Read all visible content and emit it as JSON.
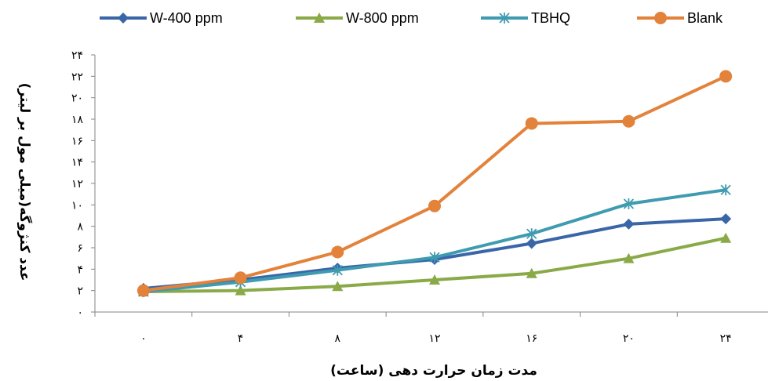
{
  "chart_data": {
    "type": "line",
    "xlabel": "مدت زمان حرارت دهی (ساعت)",
    "ylabel": "عدد کنژوگه(میلی مول بر لیتر)",
    "x": [
      0,
      4,
      8,
      12,
      16,
      20,
      24
    ],
    "x_tick_labels": [
      "۰",
      "۴",
      "۸",
      "۱۲",
      "۱۶",
      "۲۰",
      "۲۴"
    ],
    "ylim": [
      0,
      24
    ],
    "y_ticks": [
      0,
      2,
      4,
      6,
      8,
      10,
      12,
      14,
      16,
      18,
      20,
      22,
      24
    ],
    "y_tick_labels": [
      "۰",
      "۲",
      "۴",
      "۶",
      "۸",
      "۱۰",
      "۱۲",
      "۱۴",
      "۱۶",
      "۱۸",
      "۲۰",
      "۲۲",
      "۲۴"
    ],
    "grid": false,
    "legend_position": "top",
    "series": [
      {
        "name": "W-400 ppm",
        "color": "#3a66a8",
        "marker": "diamond",
        "values": [
          2.2,
          3.0,
          4.1,
          4.9,
          6.4,
          8.2,
          8.7
        ]
      },
      {
        "name": "W-800 ppm",
        "color": "#8aaa48",
        "marker": "triangle",
        "values": [
          1.9,
          2.0,
          2.4,
          3.0,
          3.6,
          5.0,
          6.9
        ]
      },
      {
        "name": "TBHQ",
        "color": "#3f9bb0",
        "marker": "asterisk",
        "values": [
          1.9,
          2.8,
          3.9,
          5.1,
          7.3,
          10.1,
          11.4
        ]
      },
      {
        "name": "Blank",
        "color": "#e3823a",
        "marker": "circle",
        "values": [
          2.0,
          3.2,
          5.6,
          9.9,
          17.6,
          17.8,
          22.0
        ]
      }
    ]
  }
}
